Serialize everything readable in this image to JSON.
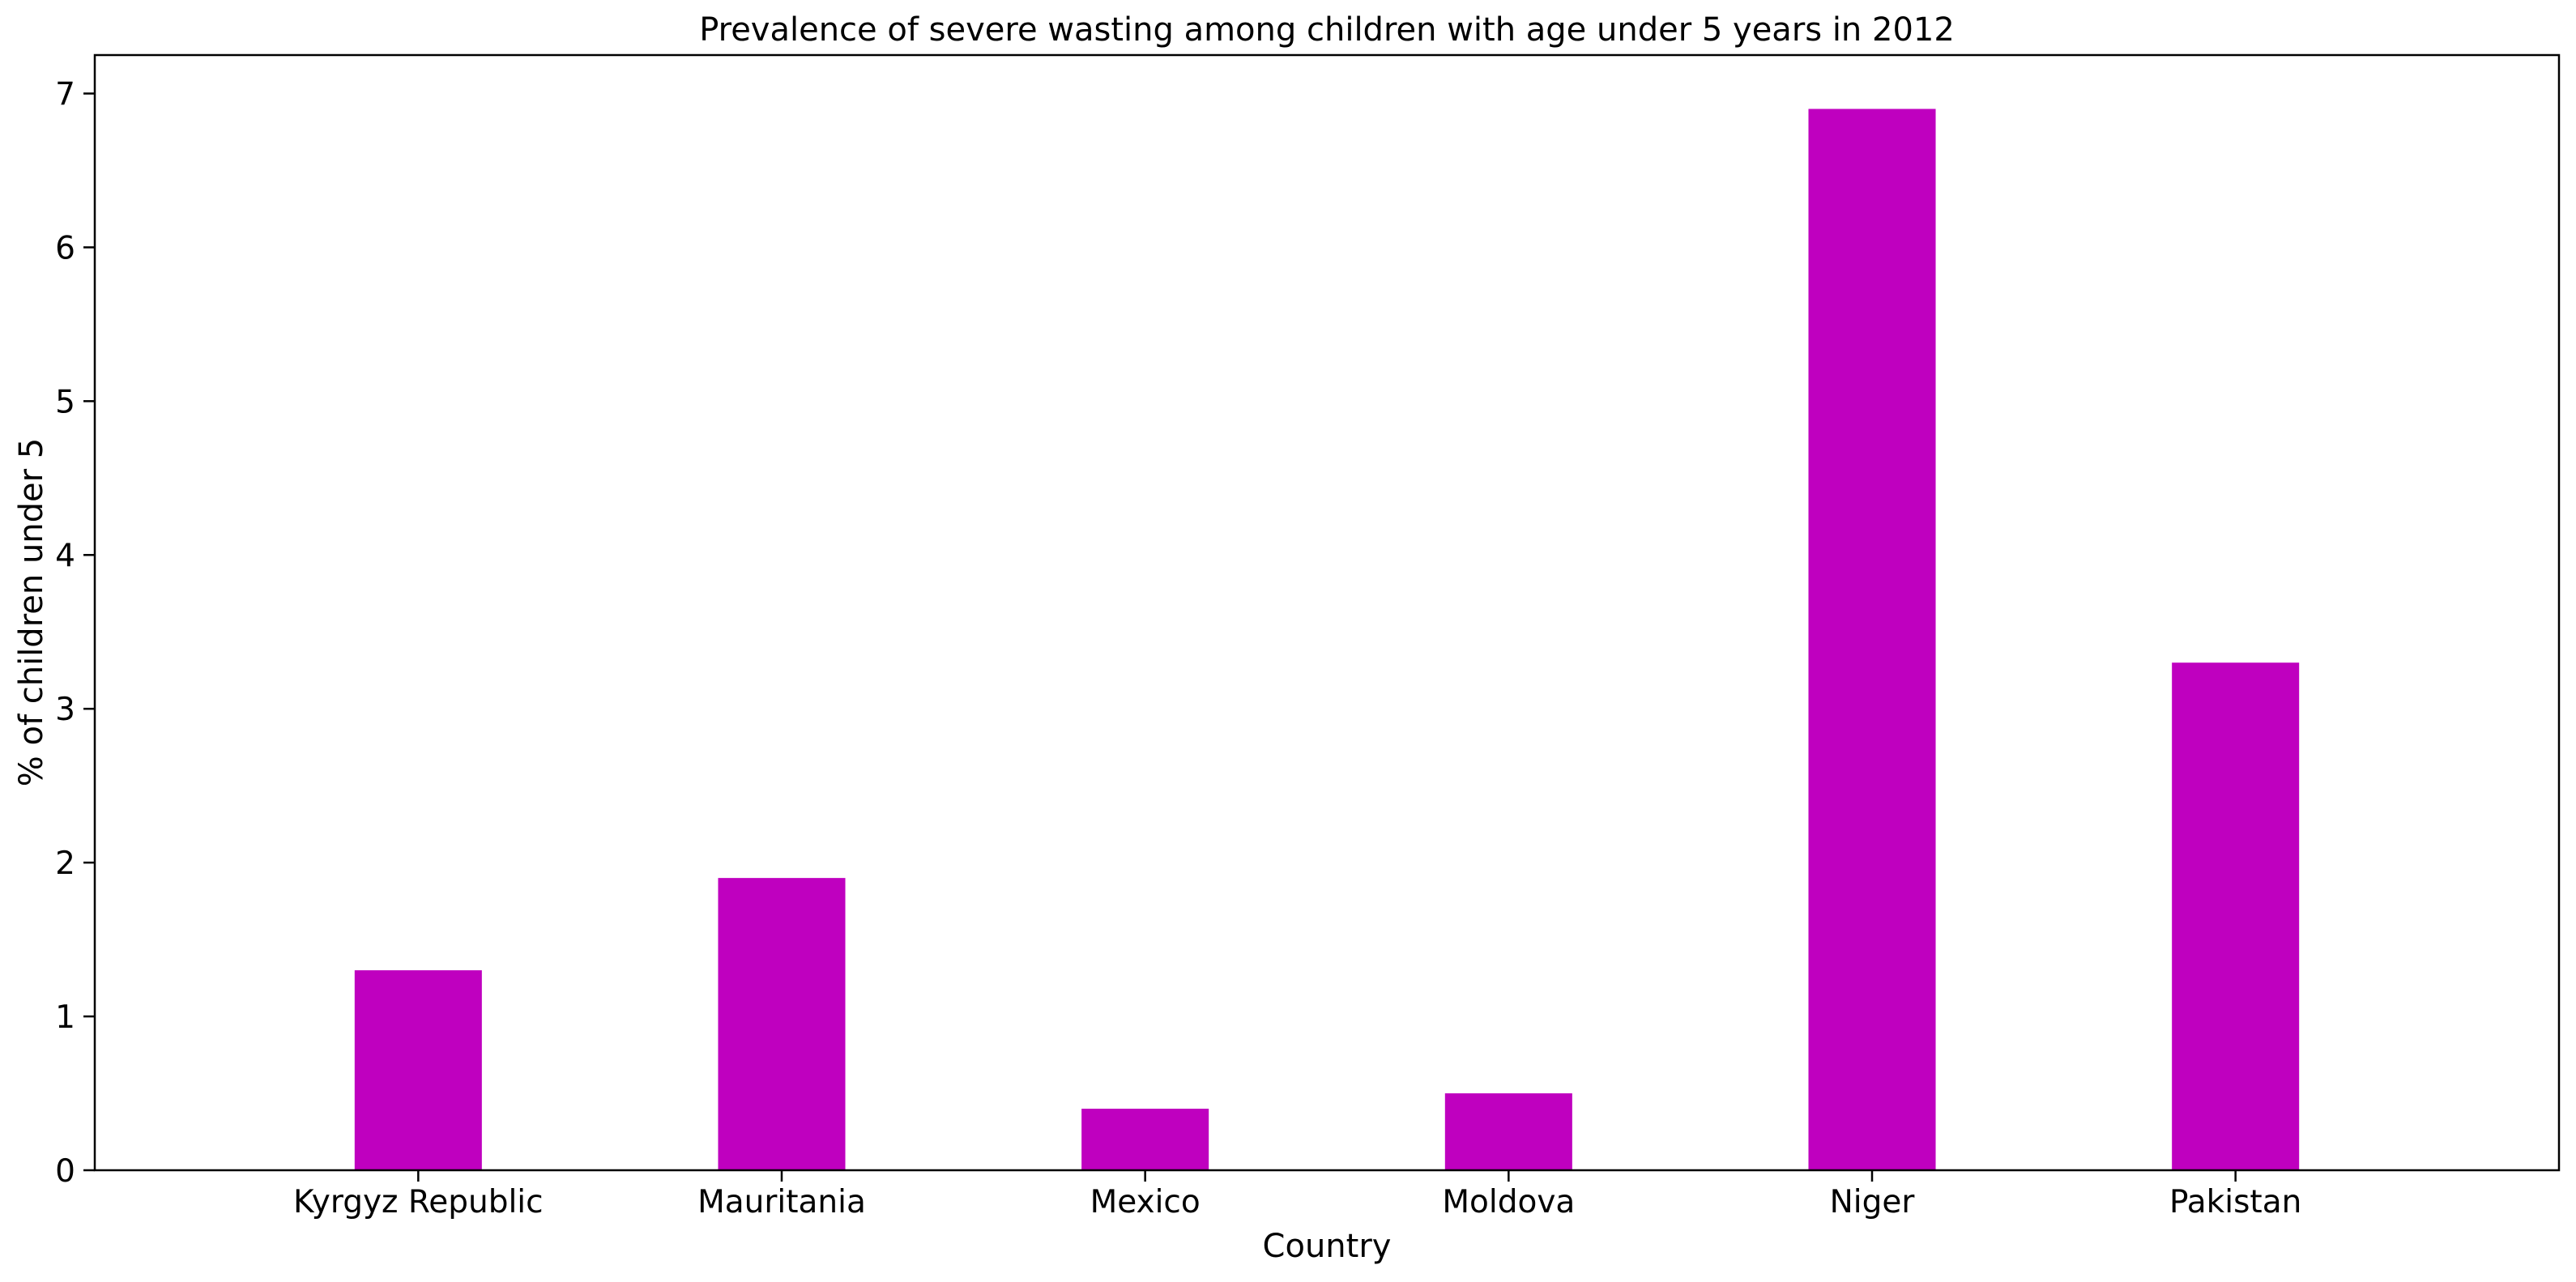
{
  "chart_data": {
    "type": "bar",
    "title": "Prevalence of severe wasting among children with age under 5 years in 2012",
    "xlabel": "Country",
    "ylabel": "% of children under 5",
    "categories": [
      "Kyrgyz Republic",
      "Mauritania",
      "Mexico",
      "Moldova",
      "Niger",
      "Pakistan"
    ],
    "values": [
      1.3,
      1.9,
      0.4,
      0.5,
      6.9,
      3.3
    ],
    "ylim": [
      0,
      7.25
    ],
    "yticks": [
      "0",
      "1",
      "2",
      "3",
      "4",
      "5",
      "6",
      "7"
    ],
    "grid": false,
    "legend": "none",
    "bar_color": "#bf00bf"
  }
}
